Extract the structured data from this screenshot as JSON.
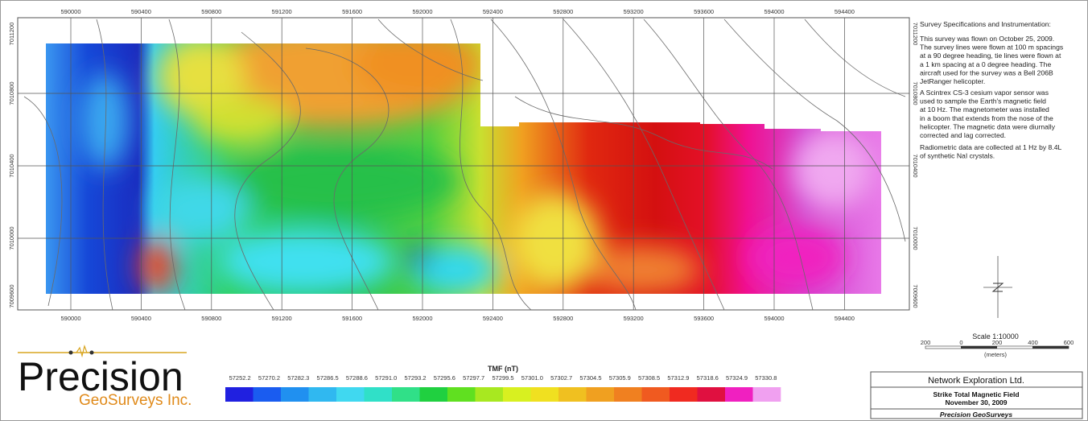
{
  "map": {
    "easting_labels": [
      590000,
      590400,
      590800,
      591200,
      591600,
      592000,
      592400,
      592800,
      593200,
      593600,
      594000,
      594400
    ],
    "northing_labels": [
      7011200,
      7010800,
      7010400,
      7010000,
      7009600
    ]
  },
  "notes": {
    "heading": "Survey Specifications and Instrumentation:",
    "paragraphs": [
      [
        "This survey was flown on October 25, 2009.",
        "The survey lines were flown at 100 m spacings",
        "at a 90 degree heading, tie lines were flown at",
        "a 1 km spacing at a 0 degree heading. The",
        "aircraft used for the survey was a Bell 206B",
        "JetRanger helicopter."
      ],
      [
        "A Scintrex CS-3 cesium vapor sensor was",
        "used to sample the Earth's magnetic field",
        "at 10 Hz. The magnetometer was installed",
        "in a boom that extends from the nose of the",
        "helicopter. The magnetic data were diurnally",
        "corrected and lag corrected."
      ],
      [
        "Radiometric data are collected at 1 Hz by 8.4L",
        "of synthetic NaI crystals."
      ]
    ]
  },
  "scale": {
    "title": "Scale 1:10000",
    "ticks": [
      "200",
      "0",
      "200",
      "400",
      "600"
    ],
    "unit": "(meters)"
  },
  "logo": {
    "name": "Precision",
    "sub": "GeoSurveys Inc."
  },
  "legend": {
    "title": "TMF (nT)",
    "labels": [
      "57252.2",
      "57270.2",
      "57282.3",
      "57286.5",
      "57288.6",
      "57291.0",
      "57293.2",
      "57295.6",
      "57297.7",
      "57299.5",
      "57301.0",
      "57302.7",
      "57304.5",
      "57305.9",
      "57308.5",
      "57312.9",
      "57318.6",
      "57324.9",
      "57330.8"
    ]
  },
  "title_block": {
    "client": "Network Exploration Ltd.",
    "title": "Strike Total Magnetic Field",
    "date": "November 30, 2009",
    "company": "Precision GeoSurveys"
  }
}
